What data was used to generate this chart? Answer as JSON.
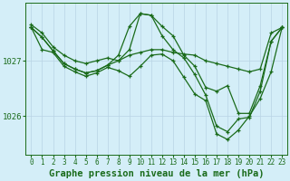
{
  "bg_color": "#d4eef8",
  "line_color": "#1a6b1a",
  "grid_color": "#b8d4e4",
  "xlabel": "Graphe pression niveau de la mer (hPa)",
  "ylabel_ticks": [
    1026,
    1027
  ],
  "xlim": [
    -0.5,
    23.5
  ],
  "ylim": [
    1025.3,
    1028.05
  ],
  "series": [
    [
      1027.65,
      1027.5,
      1027.25,
      1027.1,
      1027.0,
      1026.95,
      1027.0,
      1027.05,
      1027.0,
      1027.1,
      1027.15,
      1027.2,
      1027.2,
      1027.15,
      1027.12,
      1027.1,
      1027.0,
      1026.95,
      1026.9,
      1026.85,
      1026.8,
      1026.85,
      1027.5,
      1027.6
    ],
    [
      1027.6,
      1027.42,
      1027.18,
      1026.95,
      1026.85,
      1026.78,
      1026.82,
      1026.92,
      1027.1,
      1027.62,
      1027.85,
      1027.82,
      1027.62,
      1027.45,
      1027.1,
      1026.9,
      1026.52,
      1026.45,
      1026.55,
      1026.05,
      1026.05,
      1026.55,
      1027.35,
      1027.6
    ],
    [
      1027.6,
      1027.42,
      1027.18,
      1026.95,
      1026.85,
      1026.78,
      1026.82,
      1026.92,
      1027.0,
      1027.2,
      1027.85,
      1027.82,
      1027.45,
      1027.2,
      1027.05,
      1026.75,
      1026.38,
      1025.82,
      1025.72,
      1025.95,
      1025.98,
      1026.45,
      1027.35,
      1027.6
    ],
    [
      1027.6,
      1027.2,
      1027.15,
      1026.9,
      1026.8,
      1026.72,
      1026.78,
      1026.88,
      1026.82,
      1026.72,
      1026.9,
      1027.1,
      1027.12,
      1027.0,
      1026.7,
      1026.4,
      1026.28,
      1025.68,
      1025.58,
      1025.75,
      1026.0,
      1026.32,
      1026.8,
      1027.6
    ]
  ],
  "tick_fontsize": 6.5,
  "label_fontsize": 7.5
}
